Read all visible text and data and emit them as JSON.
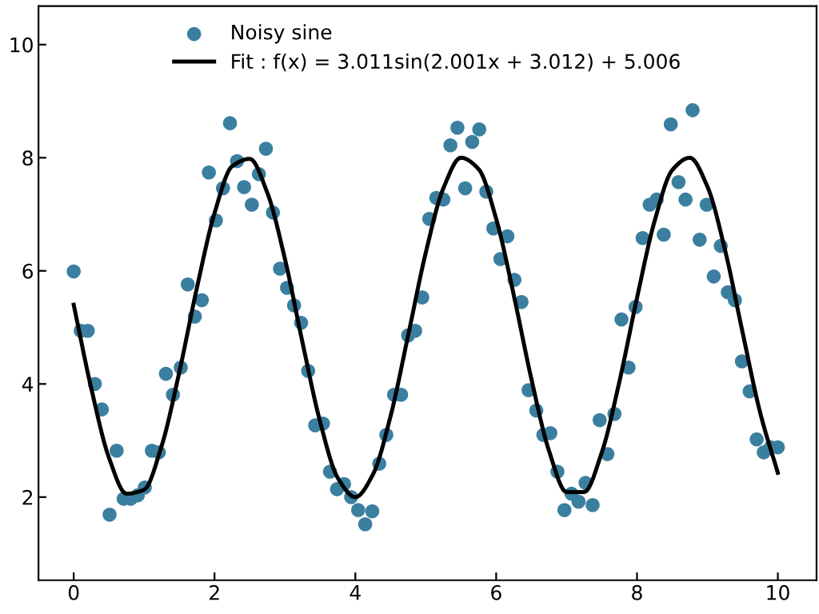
{
  "chart_data": {
    "type": "scatter",
    "xlim": [
      -0.5,
      10.55
    ],
    "ylim": [
      0.53,
      10.68
    ],
    "xticks": [
      0,
      2,
      4,
      6,
      8,
      10
    ],
    "yticks": [
      2,
      4,
      6,
      8,
      10
    ],
    "grid": false,
    "legend": "top",
    "series": [
      {
        "name": "Noisy sine",
        "marker": "circle",
        "color": "#3a7f9f",
        "x": [
          0.0,
          0.1,
          0.2,
          0.3,
          0.4,
          0.51,
          0.61,
          0.71,
          0.81,
          0.91,
          1.01,
          1.11,
          1.21,
          1.31,
          1.41,
          1.52,
          1.62,
          1.72,
          1.82,
          1.92,
          2.02,
          2.12,
          2.22,
          2.32,
          2.42,
          2.53,
          2.63,
          2.73,
          2.83,
          2.93,
          3.03,
          3.13,
          3.23,
          3.33,
          3.43,
          3.54,
          3.64,
          3.74,
          3.84,
          3.94,
          4.04,
          4.14,
          4.24,
          4.34,
          4.44,
          4.55,
          4.65,
          4.75,
          4.85,
          4.95,
          5.05,
          5.15,
          5.25,
          5.35,
          5.45,
          5.56,
          5.66,
          5.76,
          5.86,
          5.96,
          6.06,
          6.16,
          6.26,
          6.36,
          6.46,
          6.57,
          6.67,
          6.77,
          6.87,
          6.97,
          7.07,
          7.17,
          7.27,
          7.37,
          7.47,
          7.58,
          7.68,
          7.78,
          7.88,
          7.98,
          8.08,
          8.18,
          8.28,
          8.38,
          8.48,
          8.59,
          8.69,
          8.79,
          8.89,
          8.99,
          9.09,
          9.19,
          9.29,
          9.39,
          9.49,
          9.6,
          9.7,
          9.8,
          9.9,
          10.0
        ],
        "values": [
          5.99,
          4.94,
          4.94,
          4.0,
          3.55,
          1.69,
          2.82,
          1.97,
          1.97,
          2.03,
          2.17,
          2.82,
          2.79,
          4.18,
          3.81,
          4.29,
          5.76,
          5.19,
          5.48,
          7.74,
          6.89,
          7.46,
          8.61,
          7.94,
          7.48,
          7.17,
          7.71,
          8.16,
          7.03,
          6.04,
          5.7,
          5.39,
          5.08,
          4.23,
          3.27,
          3.3,
          2.45,
          2.14,
          2.23,
          2.0,
          1.77,
          1.52,
          1.75,
          2.59,
          3.1,
          3.81,
          3.81,
          4.86,
          4.94,
          5.53,
          6.92,
          7.29,
          7.26,
          8.22,
          8.53,
          7.46,
          8.28,
          8.5,
          7.4,
          6.75,
          6.21,
          6.61,
          5.84,
          5.45,
          3.89,
          3.53,
          3.1,
          3.13,
          2.45,
          1.77,
          2.06,
          1.92,
          2.25,
          1.86,
          3.36,
          2.76,
          3.47,
          5.14,
          4.29,
          5.36,
          6.58,
          7.17,
          7.26,
          6.64,
          8.59,
          7.57,
          7.26,
          8.84,
          6.55,
          7.17,
          5.9,
          6.44,
          5.62,
          5.48,
          4.4,
          3.87,
          3.02,
          2.79,
          2.88,
          2.88
        ]
      },
      {
        "name": "Fit : f(x) = 3.011sin(2.001x + 3.012) + 5.006",
        "type": "line",
        "color": "#000000",
        "marker": "none",
        "line_style": "solid",
        "x": [
          0,
          0.25,
          0.5,
          0.75,
          1,
          1.25,
          1.5,
          1.75,
          2,
          2.25,
          2.5,
          2.75,
          3,
          3.25,
          3.5,
          3.75,
          4,
          4.25,
          4.5,
          4.75,
          5,
          5.25,
          5.5,
          5.75,
          6,
          6.25,
          6.5,
          6.75,
          7,
          7.25,
          7.5,
          7.75,
          8,
          8.25,
          8.5,
          8.75,
          9,
          9.25,
          9.5,
          9.75,
          10
        ],
        "values": [
          5.4,
          3.92,
          2.7,
          2.06,
          2.13,
          2.91,
          4.21,
          5.7,
          7.02,
          7.85,
          7.98,
          7.38,
          6.21,
          4.73,
          3.33,
          2.34,
          2.0,
          2.4,
          3.43,
          4.86,
          6.32,
          7.46,
          8.0,
          7.8,
          6.92,
          5.57,
          4.09,
          2.82,
          2.09,
          2.09,
          2.79,
          4.04,
          5.52,
          6.88,
          7.78,
          8.0,
          7.49,
          6.37,
          4.91,
          3.49,
          2.43
        ]
      }
    ]
  }
}
